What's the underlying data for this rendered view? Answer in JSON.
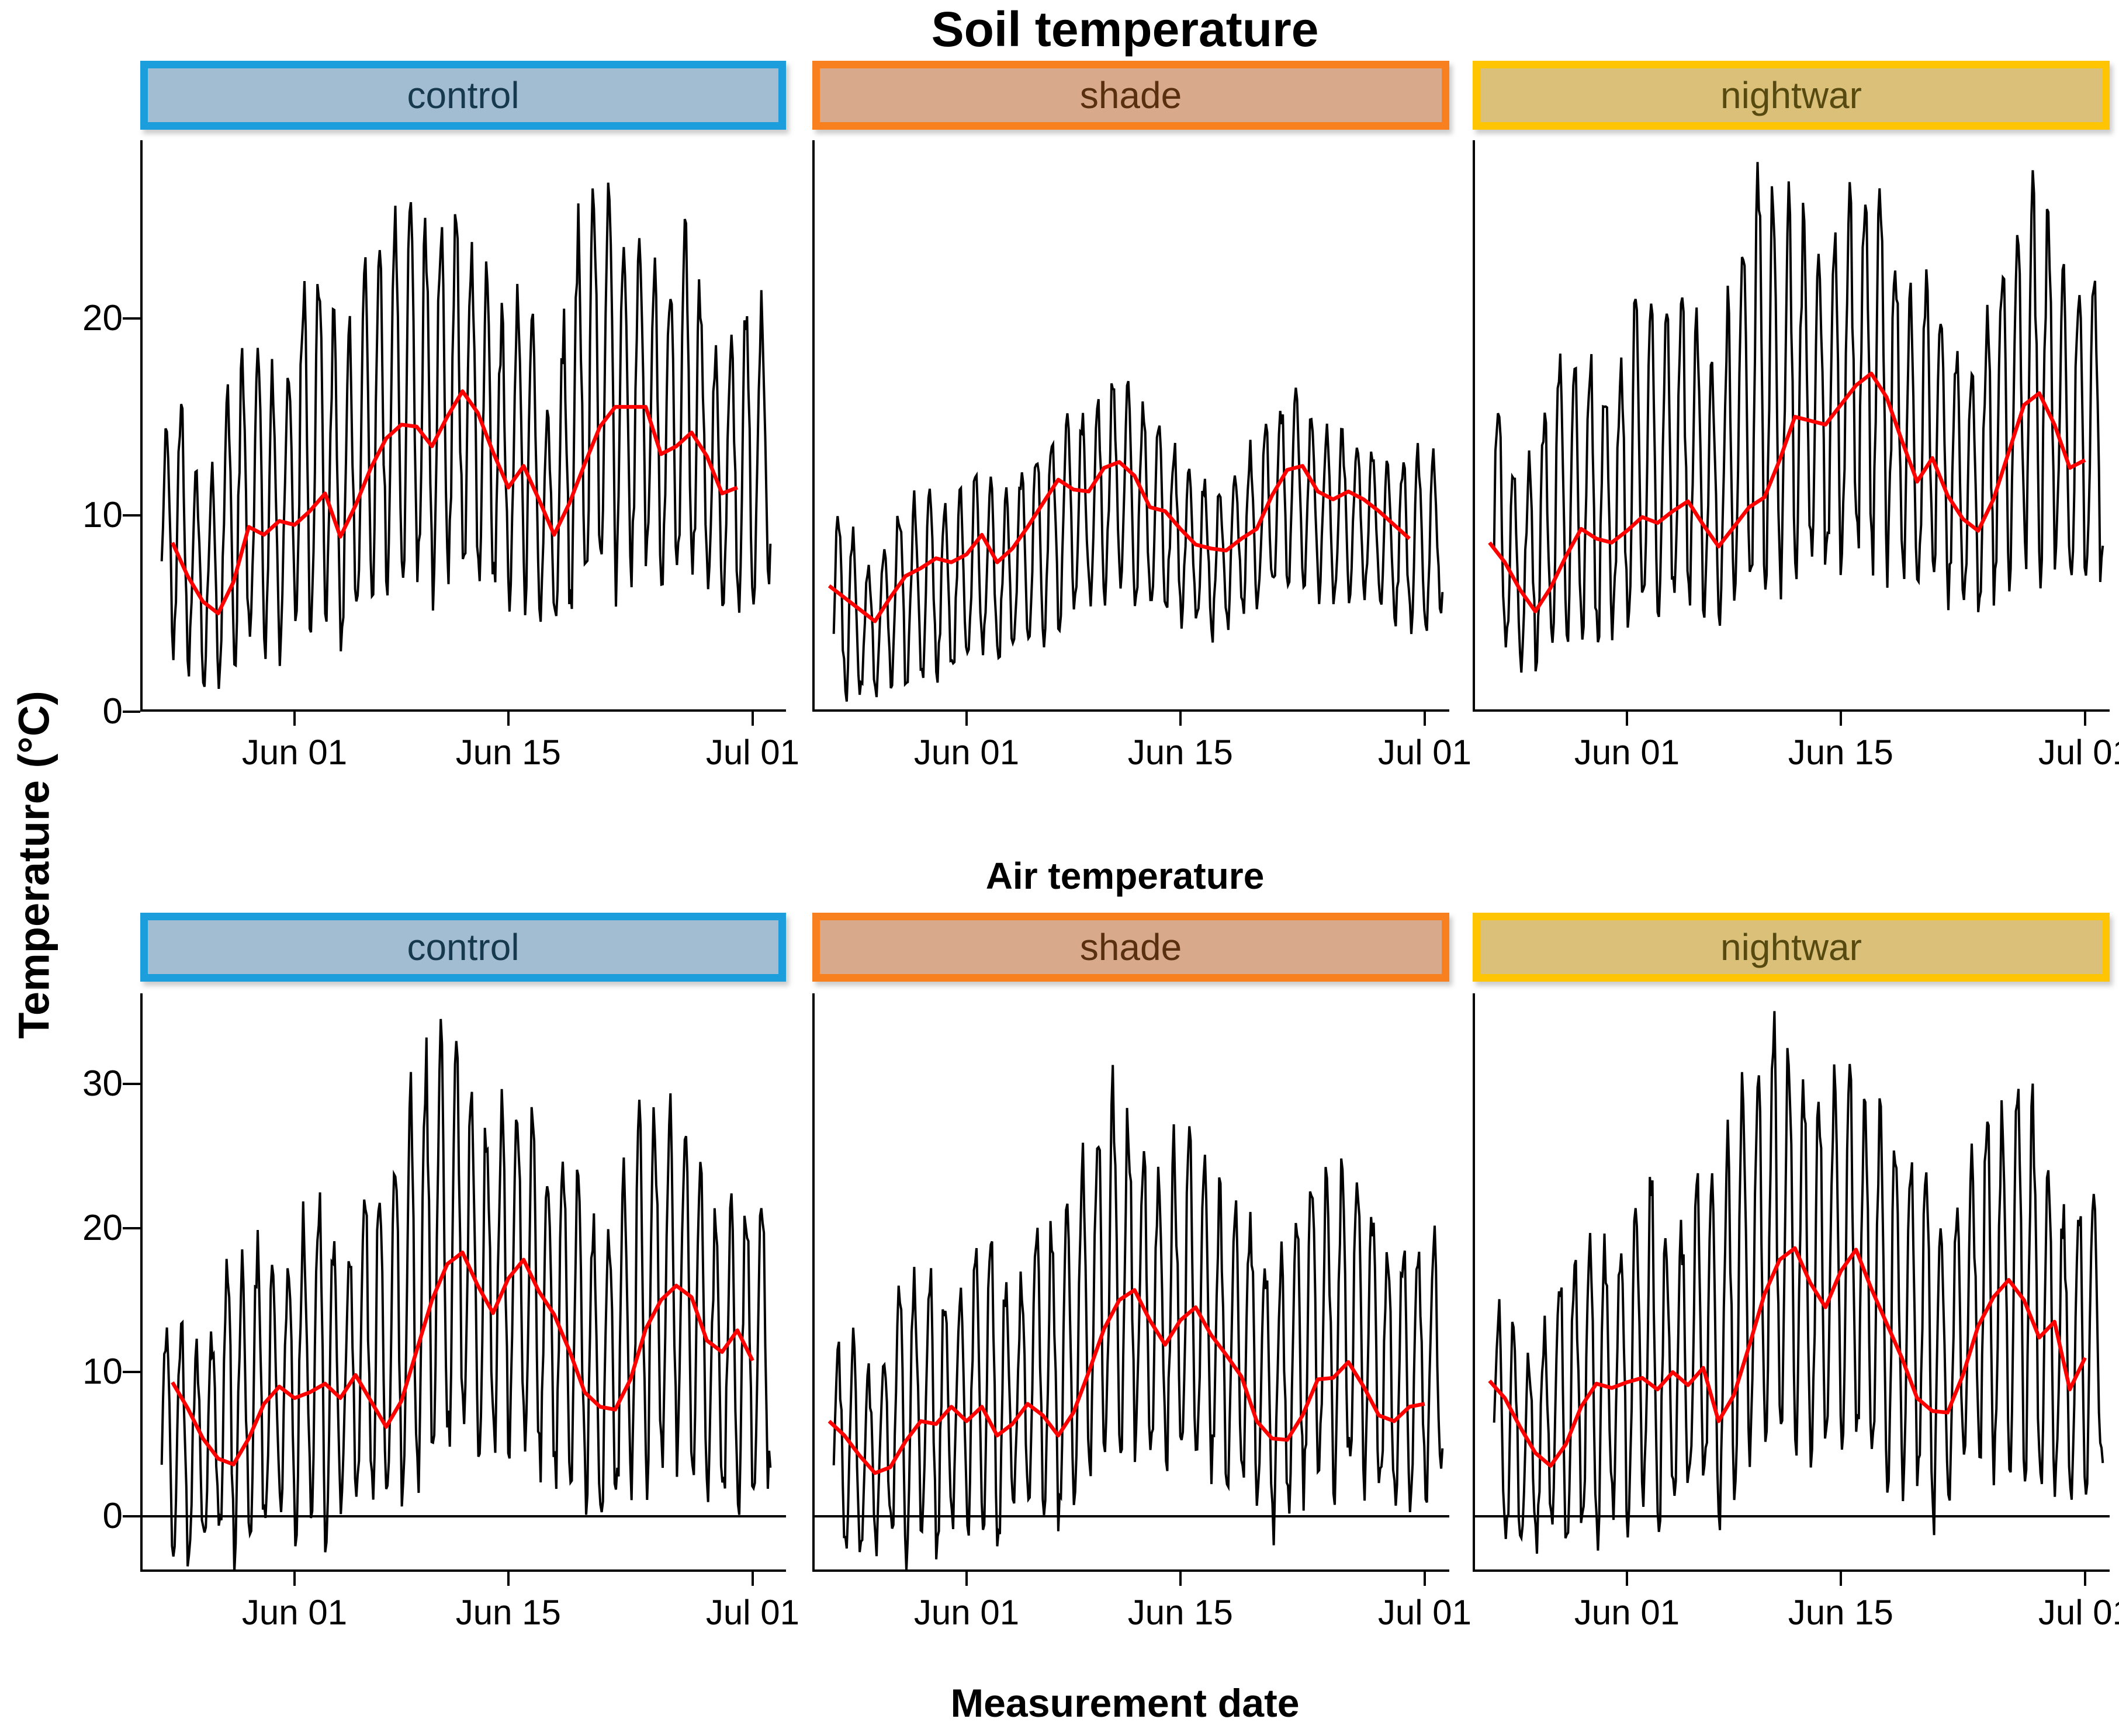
{
  "titles": {
    "row1": "Soil temperature",
    "row2": "Air temperature",
    "x_axis": "Measurement date",
    "y_axis": "Temperature (°C)"
  },
  "facets": {
    "columns": [
      {
        "label": "control",
        "border_color": "#1C9EDC",
        "fill_color": "#A2BCD2",
        "text_color": "#17394E"
      },
      {
        "label": "shade",
        "border_color": "#F8801E",
        "fill_color": "#D8A98A",
        "text_color": "#59300F"
      },
      {
        "label": "nightwar",
        "border_color": "#FFC402",
        "fill_color": "#DBC07A",
        "text_color": "#574A10"
      }
    ]
  },
  "axes": {
    "row1_ytick_labels": [
      "0",
      "10",
      "20"
    ],
    "row1_ytick_values": [
      0,
      10,
      20
    ],
    "row2_ytick_labels": [
      "0",
      "10",
      "20",
      "30"
    ],
    "row2_ytick_values": [
      0,
      10,
      20,
      30
    ],
    "xtick_labels": [
      "Jun 01",
      "Jun 15",
      "Jul 01"
    ],
    "xtick_days": [
      0,
      14,
      30
    ]
  },
  "colors": {
    "smooth_line": "#FF0000",
    "data_line": "#000000",
    "axis_line": "#000000"
  },
  "chart_data": {
    "type": "line",
    "layout": "facet grid 2 rows (measurement) x 3 columns (treatment)",
    "rows": [
      "Soil temperature",
      "Air temperature"
    ],
    "columns": [
      "control",
      "shade",
      "nightwar"
    ],
    "x_unit": "days relative to Jun 01 (x domain approx May 22 to Jul 03)",
    "day_start": -9,
    "row1_ylim": [
      0,
      29
    ],
    "row2_ylim": [
      -3.9,
      36.3
    ],
    "series_description": "black = high-frequency logger temperature (daily min/max envelope given per day), red = smoothed daily trend",
    "panels": [
      {
        "row": "Soil temperature",
        "treatment": "control",
        "seed": 11,
        "daily_min": [
          3.2,
          3.0,
          2.5,
          2.0,
          1.8,
          2.5,
          3.0,
          3.5,
          3.0,
          4.0,
          4.5,
          5.0,
          4.0,
          4.5,
          5.0,
          6.0,
          6.5,
          7.0,
          6.5,
          7.0,
          7.5,
          7.0,
          6.5,
          6.0,
          6.5,
          5.0,
          4.5,
          5.0,
          6.0,
          6.5,
          7.0,
          7.0,
          7.5,
          6.5,
          7.0,
          7.0,
          6.5,
          5.5,
          5.0,
          5.5,
          6.0
        ],
        "daily_max": [
          10.0,
          18.2,
          13.5,
          10.5,
          13.0,
          19.5,
          16.0,
          20.0,
          14.5,
          20.5,
          22.0,
          23.5,
          16.5,
          21.0,
          24.0,
          23.0,
          28.0,
          24.5,
          23.5,
          26.5,
          24.0,
          22.0,
          21.5,
          18.0,
          23.0,
          17.5,
          14.0,
          23.0,
          25.5,
          26.0,
          25.5,
          24.0,
          25.0,
          20.0,
          23.5,
          24.5,
          19.0,
          16.5,
          21.0,
          20.5,
          21.0
        ],
        "smooth_red": [
          null,
          8.6,
          6.9,
          5.6,
          5.0,
          6.6,
          9.4,
          9.0,
          9.7,
          9.5,
          10.2,
          11.1,
          8.9,
          10.5,
          12.4,
          13.9,
          14.6,
          14.5,
          13.5,
          15.0,
          16.3,
          15.2,
          13.2,
          11.4,
          12.5,
          10.8,
          9.0,
          10.6,
          12.6,
          14.5,
          15.5,
          15.5,
          15.5,
          13.1,
          13.5,
          14.2,
          13.0,
          11.1,
          11.4,
          null
        ]
      },
      {
        "row": "Soil temperature",
        "treatment": "shade",
        "seed": 22,
        "daily_min": [
          1.2,
          1.0,
          0.8,
          0.8,
          1.5,
          1.2,
          2.0,
          1.5,
          2.0,
          2.5,
          3.0,
          2.5,
          3.0,
          3.5,
          4.0,
          4.5,
          5.0,
          5.5,
          6.0,
          6.5,
          6.0,
          5.5,
          5.5,
          5.0,
          4.5,
          4.0,
          4.5,
          5.0,
          5.5,
          6.0,
          6.5,
          6.5,
          6.0,
          5.5,
          6.0,
          6.0,
          5.5,
          5.0,
          4.5,
          4.5,
          5.0
        ],
        "daily_max": [
          9.5,
          10.5,
          8.0,
          7.0,
          9.5,
          11.0,
          10.0,
          11.5,
          9.5,
          11.5,
          12.5,
          10.5,
          11.0,
          13.5,
          13.0,
          14.5,
          15.5,
          15.0,
          16.0,
          17.5,
          16.0,
          14.5,
          14.0,
          13.0,
          12.5,
          11.5,
          11.0,
          13.0,
          13.5,
          15.0,
          16.0,
          15.5,
          14.5,
          13.5,
          14.5,
          14.0,
          13.0,
          12.0,
          13.5,
          12.5,
          13.0
        ],
        "smooth_red": [
          6.4,
          5.8,
          5.2,
          4.6,
          5.8,
          6.9,
          7.3,
          7.8,
          7.6,
          8.0,
          9.0,
          7.6,
          8.3,
          9.4,
          10.6,
          11.8,
          11.3,
          11.2,
          12.4,
          12.7,
          12.0,
          10.4,
          10.2,
          9.3,
          8.5,
          8.3,
          8.2,
          8.8,
          9.3,
          11.0,
          12.3,
          12.5,
          11.2,
          10.8,
          11.2,
          10.8,
          10.2,
          9.5,
          8.8,
          null
        ]
      },
      {
        "row": "Soil temperature",
        "treatment": "nightwar",
        "seed": 33,
        "daily_min": [
          3.5,
          3.2,
          2.8,
          2.5,
          3.0,
          3.5,
          4.0,
          3.5,
          4.0,
          4.5,
          5.0,
          4.5,
          5.0,
          5.5,
          5.0,
          4.5,
          5.5,
          6.0,
          6.5,
          7.0,
          7.5,
          7.5,
          7.0,
          7.5,
          8.0,
          8.0,
          7.5,
          7.0,
          6.5,
          6.5,
          6.0,
          5.5,
          5.5,
          6.0,
          7.0,
          7.5,
          8.0,
          7.5,
          6.5,
          6.5,
          7.0
        ],
        "daily_max": [
          18.0,
          14.0,
          11.0,
          13.5,
          16.0,
          18.5,
          16.5,
          19.0,
          15.0,
          20.0,
          21.5,
          19.5,
          21.0,
          22.0,
          18.0,
          17.0,
          22.5,
          24.5,
          28.5,
          25.0,
          26.0,
          24.0,
          23.5,
          25.5,
          26.5,
          27.0,
          25.0,
          22.0,
          20.0,
          22.5,
          19.5,
          17.5,
          18.0,
          21.5,
          24.0,
          27.5,
          26.0,
          24.0,
          21.0,
          22.5,
          23.0
        ],
        "smooth_red": [
          8.6,
          7.6,
          6.2,
          5.1,
          6.3,
          7.9,
          9.3,
          8.8,
          8.6,
          9.2,
          9.9,
          9.6,
          10.2,
          10.7,
          9.5,
          8.4,
          9.4,
          10.4,
          10.9,
          12.8,
          15.0,
          14.8,
          14.6,
          15.6,
          16.6,
          17.2,
          16.0,
          13.8,
          11.7,
          12.9,
          11.0,
          9.8,
          9.2,
          10.8,
          13.2,
          15.6,
          16.2,
          14.6,
          12.4,
          12.8
        ]
      },
      {
        "row": "Air temperature",
        "treatment": "control",
        "seed": 44,
        "daily_min": [
          -1.5,
          -2.5,
          -3.0,
          -2.0,
          -1.5,
          -2.8,
          -1.0,
          -2.5,
          0.5,
          -0.5,
          0.5,
          -1.5,
          1.0,
          0.5,
          1.5,
          -0.3,
          2.0,
          3.0,
          4.0,
          5.0,
          5.5,
          4.5,
          4.0,
          5.0,
          4.5,
          4.0,
          3.0,
          2.5,
          1.5,
          -1.0,
          0.5,
          2.0,
          3.5,
          3.0,
          4.0,
          3.5,
          2.0,
          1.0,
          1.5,
          2.0,
          2.5
        ],
        "daily_max": [
          10.0,
          14.5,
          13.0,
          10.0,
          14.0,
          20.0,
          17.0,
          21.0,
          15.0,
          20.5,
          21.5,
          23.0,
          16.0,
          21.0,
          24.5,
          22.0,
          27.0,
          30.0,
          32.5,
          33.5,
          31.0,
          28.0,
          27.5,
          30.0,
          29.0,
          26.0,
          24.0,
          25.5,
          23.0,
          18.0,
          22.0,
          26.0,
          28.0,
          27.0,
          28.5,
          26.0,
          22.0,
          19.5,
          23.0,
          20.0,
          23.5
        ],
        "smooth_red": [
          null,
          9.3,
          7.5,
          5.4,
          4.0,
          3.6,
          5.4,
          7.8,
          9.0,
          8.2,
          8.6,
          9.2,
          8.2,
          9.8,
          8.0,
          6.2,
          8.0,
          11.5,
          15.0,
          17.5,
          18.3,
          16.0,
          14.1,
          16.5,
          17.8,
          15.6,
          14.0,
          11.5,
          8.6,
          7.6,
          7.4,
          9.5,
          13.0,
          15.0,
          16.0,
          15.2,
          12.2,
          11.4,
          12.9,
          10.8
        ]
      },
      {
        "row": "Air temperature",
        "treatment": "shade",
        "seed": 55,
        "daily_min": [
          -1.8,
          -2.2,
          -2.5,
          -1.8,
          -1.2,
          -2.5,
          -0.8,
          -2.0,
          0.3,
          -0.8,
          0.3,
          -1.8,
          0.8,
          0.3,
          1.2,
          -0.5,
          1.8,
          2.5,
          3.5,
          4.5,
          5.0,
          4.0,
          3.5,
          4.5,
          4.0,
          3.5,
          2.5,
          2.0,
          1.2,
          -1.2,
          0.3,
          1.8,
          3.0,
          2.5,
          3.5,
          3.0,
          1.8,
          0.8,
          1.2,
          1.8,
          2.0
        ],
        "daily_max": [
          9.0,
          13.0,
          11.5,
          9.0,
          12.5,
          17.5,
          15.0,
          18.0,
          13.0,
          17.5,
          18.5,
          19.5,
          14.0,
          18.0,
          21.0,
          19.0,
          23.0,
          26.0,
          28.5,
          29.5,
          27.5,
          24.5,
          24.0,
          26.5,
          25.5,
          23.0,
          21.0,
          22.5,
          20.0,
          16.0,
          19.5,
          23.0,
          24.5,
          23.5,
          25.0,
          23.0,
          19.5,
          17.0,
          20.0,
          17.5,
          20.5
        ],
        "smooth_red": [
          6.6,
          5.6,
          4.2,
          3.0,
          3.4,
          5.2,
          6.6,
          6.4,
          7.6,
          6.6,
          7.6,
          5.6,
          6.4,
          7.8,
          7.0,
          5.6,
          7.2,
          10.0,
          13.0,
          15.0,
          15.7,
          13.6,
          11.9,
          13.6,
          14.5,
          12.6,
          11.2,
          9.7,
          6.6,
          5.4,
          5.3,
          7.0,
          9.5,
          9.6,
          10.7,
          9.0,
          7.0,
          6.6,
          7.6,
          7.8
        ]
      },
      {
        "row": "Air temperature",
        "treatment": "nightwar",
        "seed": 66,
        "daily_min": [
          -1.2,
          -2.0,
          -2.5,
          -1.5,
          -1.0,
          -2.2,
          -0.5,
          -2.0,
          1.0,
          0.0,
          1.0,
          -1.0,
          1.5,
          1.0,
          2.0,
          0.0,
          2.5,
          3.5,
          4.5,
          5.5,
          6.0,
          5.0,
          4.5,
          5.5,
          5.0,
          4.5,
          3.5,
          3.0,
          2.0,
          -0.5,
          1.0,
          2.5,
          4.0,
          3.5,
          4.5,
          4.0,
          2.5,
          1.5,
          2.0,
          2.5,
          3.0
        ],
        "daily_max": [
          15.0,
          14.0,
          12.5,
          10.5,
          14.5,
          19.5,
          17.5,
          21.5,
          15.5,
          21.0,
          22.0,
          23.5,
          16.5,
          21.5,
          25.0,
          22.5,
          27.5,
          30.5,
          33.0,
          34.5,
          31.5,
          28.5,
          28.0,
          30.5,
          31.0,
          28.0,
          26.5,
          24.5,
          26.0,
          23.5,
          18.5,
          22.5,
          26.5,
          29.0,
          28.0,
          29.5,
          27.0,
          23.0,
          20.0,
          23.5,
          20.5
        ],
        "smooth_red": [
          9.4,
          8.2,
          6.2,
          4.4,
          3.5,
          5.0,
          7.6,
          9.2,
          8.9,
          9.3,
          9.6,
          8.8,
          10.0,
          9.1,
          10.3,
          6.6,
          8.4,
          11.8,
          15.4,
          17.8,
          18.6,
          16.2,
          14.5,
          17.0,
          18.5,
          15.8,
          13.4,
          11.0,
          8.2,
          7.3,
          7.2,
          9.8,
          13.2,
          15.2,
          16.4,
          15.0,
          12.4,
          13.5,
          8.8,
          11.0
        ]
      }
    ]
  }
}
